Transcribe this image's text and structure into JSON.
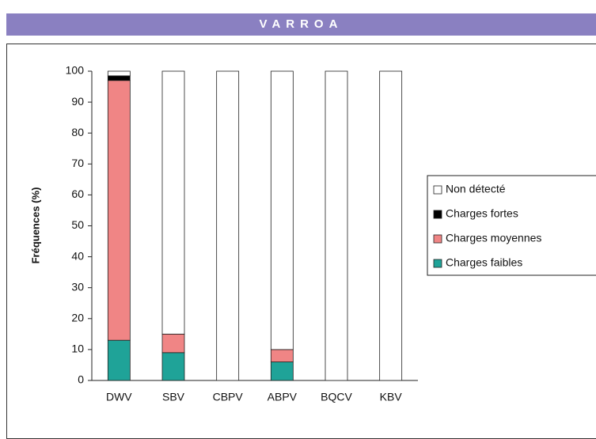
{
  "header": {
    "title": "VARROA"
  },
  "chart_data": {
    "type": "bar",
    "stacked": true,
    "ylabel": "Fréquences (%)",
    "categories": [
      "DWV",
      "SBV",
      "CBPV",
      "ABPV",
      "BQCV",
      "KBV"
    ],
    "series": [
      {
        "name": "Charges faibles",
        "color": "#1fa398",
        "values": [
          13,
          9,
          0,
          6,
          0,
          0
        ]
      },
      {
        "name": "Charges moyennes",
        "color": "#f08585",
        "values": [
          84,
          6,
          0,
          4,
          0,
          0
        ]
      },
      {
        "name": "Charges fortes",
        "color": "#000000",
        "values": [
          1.5,
          0,
          0,
          0,
          0,
          0
        ]
      },
      {
        "name": "Non détecté",
        "color": "#ffffff",
        "values": [
          1.5,
          85,
          100,
          90,
          100,
          100
        ]
      }
    ],
    "ylim": [
      0,
      100
    ],
    "yticks": [
      0,
      10,
      20,
      30,
      40,
      50,
      60,
      70,
      80,
      90,
      100
    ],
    "grid": false,
    "legend": "right"
  }
}
